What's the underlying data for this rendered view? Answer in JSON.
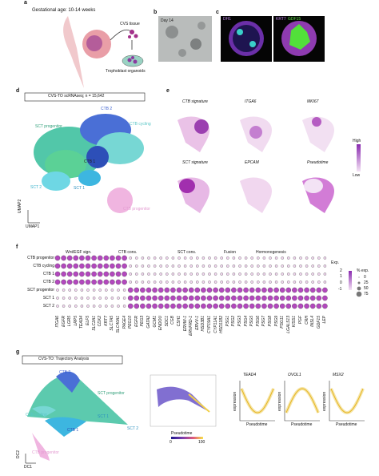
{
  "panel_a": {
    "label": "a",
    "gestational_age": "Gestational age: 10-14 weeks",
    "cvs_tissue": "CVS tissue",
    "organoids": "Trophoblast organoids"
  },
  "panel_b": {
    "label": "b",
    "day": "Day 14"
  },
  "panel_c": {
    "label": "c",
    "left_stains": [
      "DH1"
    ],
    "right_stains": [
      "KRT7",
      "GDF15"
    ]
  },
  "panel_d": {
    "label": "d",
    "title": "CVS-TO scRNAseq; n = 15,642",
    "clusters": [
      "CTB 2",
      "CTB cycling",
      "SCT progenitor",
      "CTB 1",
      "SCT 1",
      "SCT 2",
      "CTB progenitor"
    ],
    "x_axis": "UMAP1",
    "y_axis": "UMAP2"
  },
  "panel_e": {
    "label": "e",
    "features": [
      "CTB signature",
      "ITGA6",
      "MKI67",
      "SCT signature",
      "EPCAM",
      "Pseudotime"
    ],
    "scale_high": "High",
    "scale_low": "Low"
  },
  "panel_f": {
    "label": "f",
    "groups": [
      "Wnt/EGF sign.",
      "CTB cons.",
      "SCT cons.",
      "Fusion",
      "Hormonogenesis"
    ],
    "rows": [
      "CTB progenitor",
      "CTB cycling",
      "CTB 1",
      "CTB 2",
      "SCT progenitor",
      "SCT 1",
      "SCT 2"
    ],
    "genes": [
      "ITGA6",
      "EGFR",
      "LGR5",
      "LRP5",
      "TEAD4",
      "ELF5",
      "SLC2A1",
      "CDX2",
      "KRT7",
      "SLC7A5",
      "SLC40A1",
      "PAGE4",
      "PEG10",
      "EGFR",
      "PEG3",
      "GATA2",
      "GCM1",
      "ENDOU",
      "SDC1",
      "CGB",
      "CSH1",
      "ERVW-1",
      "ERVFRD-1",
      "ERVV-1",
      "HSD3B1",
      "CYP19A1",
      "CYP11A1",
      "HSD11B2",
      "PSG1",
      "PSG2",
      "PSG3",
      "PSG4",
      "PSG5",
      "PSG6",
      "PSG7",
      "PSG8",
      "PSG9",
      "PSG11",
      "LGALS13",
      "KISS1",
      "PGF",
      "CRH",
      "INSL4",
      "GDF15",
      "LEP"
    ],
    "exp_title": "Exp.",
    "exp_ticks": [
      "2",
      "1",
      "0",
      "-1"
    ],
    "pct_title": "% exp.",
    "pct_ticks": [
      "0",
      "25",
      "50",
      "75"
    ]
  },
  "panel_g": {
    "label": "g",
    "title": "CVS-TO: Trajectory Analysis",
    "clusters": [
      "CTB 2",
      "SCT progenitor",
      "CTB cycling",
      "SCT 1",
      "CTB 1",
      "SCT 2",
      "CTB progenitor"
    ],
    "x_axis": "DC1",
    "y_axis": "DC2",
    "pseudotime_label": "Pseudotime",
    "pseudotime_ticks": [
      "0",
      "100"
    ],
    "trend_genes": [
      "TEAD4",
      "OVOL1",
      "MSX2"
    ],
    "trend_x": "Pseudotime",
    "trend_y": "expression"
  }
}
